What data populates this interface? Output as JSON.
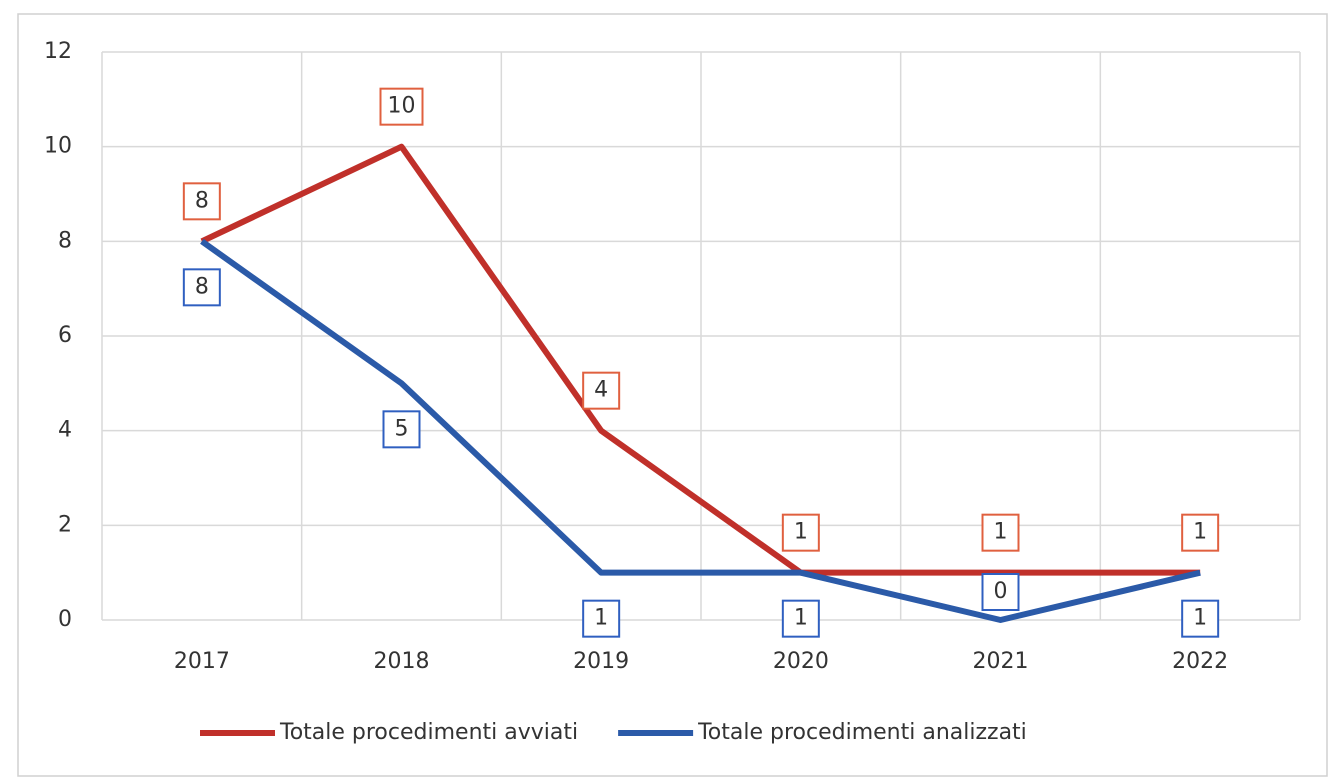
{
  "chart_data": {
    "type": "line",
    "categories": [
      "2017",
      "2018",
      "2019",
      "2020",
      "2021",
      "2022"
    ],
    "series": [
      {
        "name": "Totale procedimenti avviati",
        "color": "#c0302a",
        "values": [
          8,
          10,
          4,
          1,
          1,
          1
        ]
      },
      {
        "name": "Totale procedimenti analizzati",
        "color": "#2b5aa8",
        "values": [
          8,
          5,
          1,
          1,
          0,
          1
        ]
      }
    ],
    "ylim": [
      0,
      12
    ],
    "yticks": [
      0,
      2,
      4,
      6,
      8,
      10,
      12
    ],
    "grid": true,
    "legend": "bottom"
  }
}
